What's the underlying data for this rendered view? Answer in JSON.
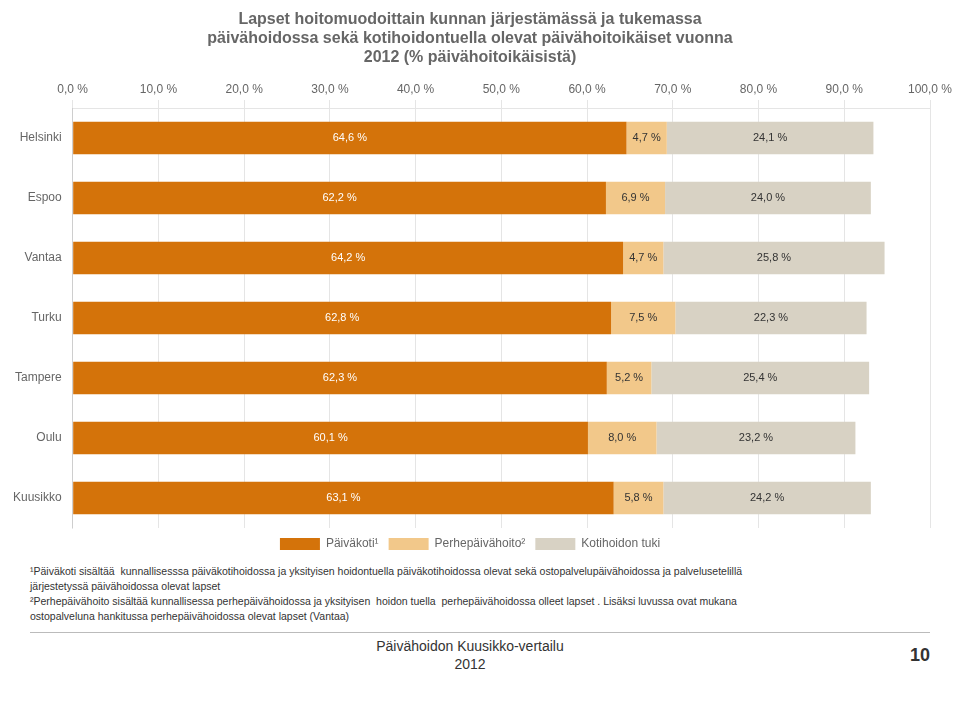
{
  "chart_data": {
    "type": "bar",
    "orientation": "horizontal",
    "stacked": true,
    "title": [
      "Lapset hoitomuodoittain kunnan järjestämässä ja tukemassa",
      "päivähoidossa sekä kotihoidontuella olevat päivähoitoikäiset vuonna",
      "2012 (% päivähoitoikäisistä)"
    ],
    "categories": [
      "Helsinki",
      "Espoo",
      "Vantaa",
      "Turku",
      "Tampere",
      "Oulu",
      "Kuusikko"
    ],
    "series": [
      {
        "name": "Päiväkoti¹",
        "color": "#D4730A",
        "values": [
          64.6,
          62.2,
          64.2,
          62.8,
          62.3,
          60.1,
          63.1
        ],
        "value_labels": [
          "64,6 %",
          "62,2 %",
          "64,2 %",
          "62,8 %",
          "62,3 %",
          "60,1 %",
          "63,1 %"
        ]
      },
      {
        "name": "Perhepäivähoito²",
        "color": "#F2C88A",
        "values": [
          4.7,
          6.9,
          4.7,
          7.5,
          5.2,
          8.0,
          5.8
        ],
        "value_labels": [
          "4,7 %",
          "6,9 %",
          "4,7 %",
          "7,5 %",
          "5,2 %",
          "8,0 %",
          "5,8 %"
        ]
      },
      {
        "name": "Kotihoidon tuki",
        "color": "#D8D2C4",
        "values": [
          24.1,
          24.0,
          25.8,
          22.3,
          25.4,
          23.2,
          24.2
        ],
        "value_labels": [
          "24,1 %",
          "24,0 %",
          "25,8 %",
          "22,3 %",
          "25,4 %",
          "23,2 %",
          "24,2 %"
        ]
      }
    ],
    "xlim": [
      0,
      100
    ],
    "xticks": [
      {
        "value": 0,
        "label": "0,0 %"
      },
      {
        "value": 10,
        "label": "10,0 %"
      },
      {
        "value": 20,
        "label": "20,0 %"
      },
      {
        "value": 30,
        "label": "30,0 %"
      },
      {
        "value": 40,
        "label": "40,0 %"
      },
      {
        "value": 50,
        "label": "50,0 %"
      },
      {
        "value": 60,
        "label": "60,0 %"
      },
      {
        "value": 70,
        "label": "70,0 %"
      },
      {
        "value": 80,
        "label": "80,0 %"
      },
      {
        "value": 90,
        "label": "90,0 %"
      },
      {
        "value": 100,
        "label": "100,0 %"
      }
    ],
    "grid": true,
    "legend": "bottom",
    "data_labels": true,
    "annotations": [
      "¹Päiväkoti sisältää  kunnallisesssa päiväkotihoidossa ja yksityisen hoidontuella päiväkotihoidossa olevat sekä ostopalvelupäivähoidossa ja palvelusetelillä",
      "järjestetyssä päivähoidossa olevat lapset",
      "²Perhepäivähoito sisältää kunnallisessa perhepäivähoidossa ja yksityisen  hoidon tuella  perhepäivähoidossa olleet lapset . Lisäksi luvussa ovat mukana",
      "ostopalveluna hankitussa perhepäivähoidossa olevat lapset (Vantaa)",
      "Päivähoidon Kuusikko-vertailu",
      "2012",
      "10"
    ]
  }
}
